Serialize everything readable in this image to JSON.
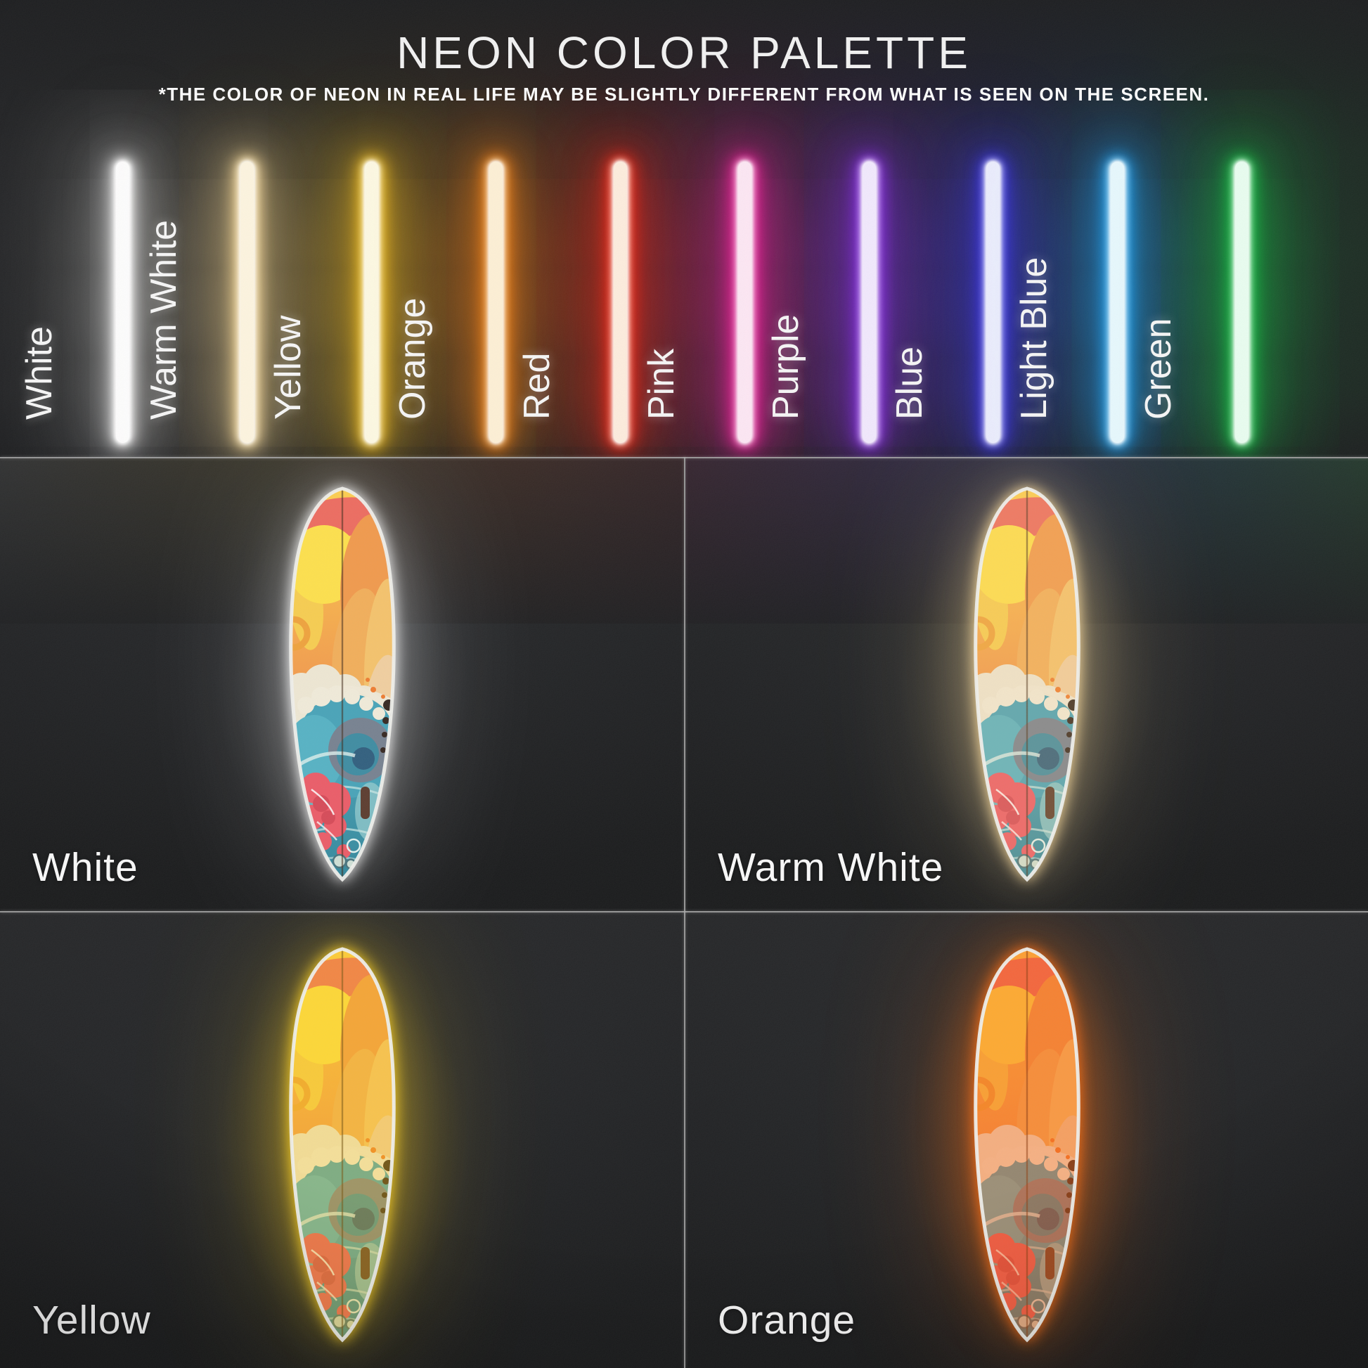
{
  "header": {
    "title": "NEON COLOR PALETTE",
    "subtitle": "*THE COLOR OF NEON IN REAL LIFE MAY BE SLIGHTLY DIFFERENT FROM WHAT IS SEEN ON THE SCREEN."
  },
  "palette": {
    "tubes": [
      {
        "label": "White",
        "core": "#ffffff",
        "glow": "#d6d6d6",
        "glow_soft": "rgba(225,225,225,0.35)",
        "wash": "rgba(195,195,190,0.11)"
      },
      {
        "label": "Warm White",
        "core": "#fff6e0",
        "glow": "#ffdf9b",
        "glow_soft": "rgba(255,223,155,0.38)",
        "wash": "rgba(255,210,130,0.14)"
      },
      {
        "label": "Yellow",
        "core": "#fffbe4",
        "glow": "#ffc81e",
        "glow_soft": "rgba(255,200,30,0.40)",
        "wash": "rgba(255,185,20,0.18)"
      },
      {
        "label": "Orange",
        "core": "#fff1d6",
        "glow": "#ff8712",
        "glow_soft": "rgba(255,135,18,0.40)",
        "wash": "rgba(255,110,15,0.19)"
      },
      {
        "label": "Red",
        "core": "#ffeede",
        "glow": "#ff2512",
        "glow_soft": "rgba(255,40,20,0.40)",
        "wash": "rgba(235,40,25,0.18)"
      },
      {
        "label": "Pink",
        "core": "#ffe9f5",
        "glow": "#ff1fa2",
        "glow_soft": "rgba(255,35,162,0.38)",
        "wash": "rgba(230,25,140,0.17)"
      },
      {
        "label": "Purple",
        "core": "#f3eaff",
        "glow": "#8d2bf2",
        "glow_soft": "rgba(141,43,242,0.38)",
        "wash": "rgba(125,45,220,0.18)"
      },
      {
        "label": "Blue",
        "core": "#edefff",
        "glow": "#3a34f5",
        "glow_soft": "rgba(62,55,245,0.38)",
        "wash": "rgba(45,45,225,0.19)"
      },
      {
        "label": "Light Blue",
        "core": "#e8faff",
        "glow": "#1ca9ff",
        "glow_soft": "rgba(30,170,255,0.36)",
        "wash": "rgba(25,150,235,0.16)"
      },
      {
        "label": "Green",
        "core": "#eafff1",
        "glow": "#10c943",
        "glow_soft": "rgba(20,200,70,0.36)",
        "wash": "rgba(18,175,60,0.16)"
      }
    ]
  },
  "panels": [
    {
      "label": "White",
      "glow": "#ffffff",
      "glow_soft": "rgba(255,255,255,0.30)",
      "wash": "rgba(255,255,255,0.10)",
      "tint": "#ffffff",
      "tint_opacity": 0
    },
    {
      "label": "Warm White",
      "glow": "#ffdf9e",
      "glow_soft": "rgba(255,223,158,0.35)",
      "wash": "rgba(255,215,140,0.14)",
      "tint": "#ffc878",
      "tint_opacity": 0.16
    },
    {
      "label": "Yellow",
      "glow": "#ffd31e",
      "glow_soft": "rgba(255,211,30,0.38)",
      "wash": "rgba(255,200,25,0.16)",
      "tint": "#ffc400",
      "tint_opacity": 0.3
    },
    {
      "label": "Orange",
      "glow": "#ff6d0e",
      "glow_soft": "rgba(255,109,14,0.42)",
      "wash": "rgba(255,105,15,0.17)",
      "tint": "#ff5c08",
      "tint_opacity": 0.42
    }
  ],
  "divider_color": "#aaaaaa"
}
